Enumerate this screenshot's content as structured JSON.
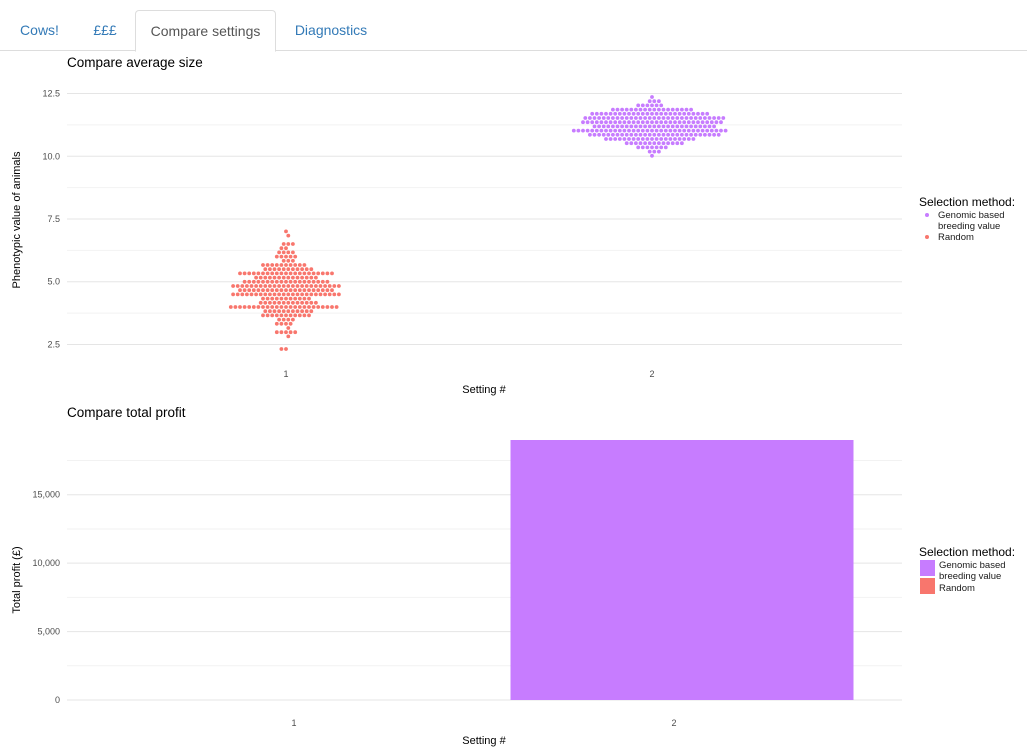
{
  "tabs": [
    {
      "label": "Cows!",
      "active": false
    },
    {
      "label": "£££",
      "active": false
    },
    {
      "label": "Compare settings",
      "active": true
    },
    {
      "label": "Diagnostics",
      "active": false
    }
  ],
  "colors": {
    "genomic": "#c77cff",
    "random": "#f8766d",
    "link": "#337ab7",
    "grid": "#ebebeb"
  },
  "chart_data": [
    {
      "type": "scatter",
      "title": "Compare average size",
      "xlabel": "Setting #",
      "ylabel": "Phenotypic value of animals",
      "categories": [
        "1",
        "2"
      ],
      "yticks": [
        "2.5",
        "5.0",
        "7.5",
        "10.0",
        "12.5"
      ],
      "ylim": [
        2.0,
        13.0
      ],
      "grid": true,
      "legend_position": "right",
      "legend_title": "Selection method:",
      "series": [
        {
          "name": "Genomic based breeding value",
          "category": "2",
          "count": 250,
          "mean": 11.2,
          "min": 9.8,
          "max": 12.7,
          "color": "#c77cff"
        },
        {
          "name": "Random",
          "category": "1",
          "count": 250,
          "mean": 4.7,
          "min": 2.3,
          "max": 7.4,
          "color": "#f8766d"
        }
      ]
    },
    {
      "type": "bar",
      "title": "Compare total profit",
      "xlabel": "Setting #",
      "ylabel": "Total profit (£)",
      "categories": [
        "1",
        "2"
      ],
      "yticks": [
        "0",
        "5,000",
        "10,000",
        "15,000"
      ],
      "ylim": [
        0,
        19500
      ],
      "grid": true,
      "legend_position": "right",
      "legend_title": "Selection method:",
      "series": [
        {
          "name": "Genomic based breeding value",
          "values": [
            0,
            19000
          ],
          "color": "#c77cff"
        },
        {
          "name": "Random",
          "values": [
            0,
            0
          ],
          "color": "#f8766d"
        }
      ]
    }
  ]
}
